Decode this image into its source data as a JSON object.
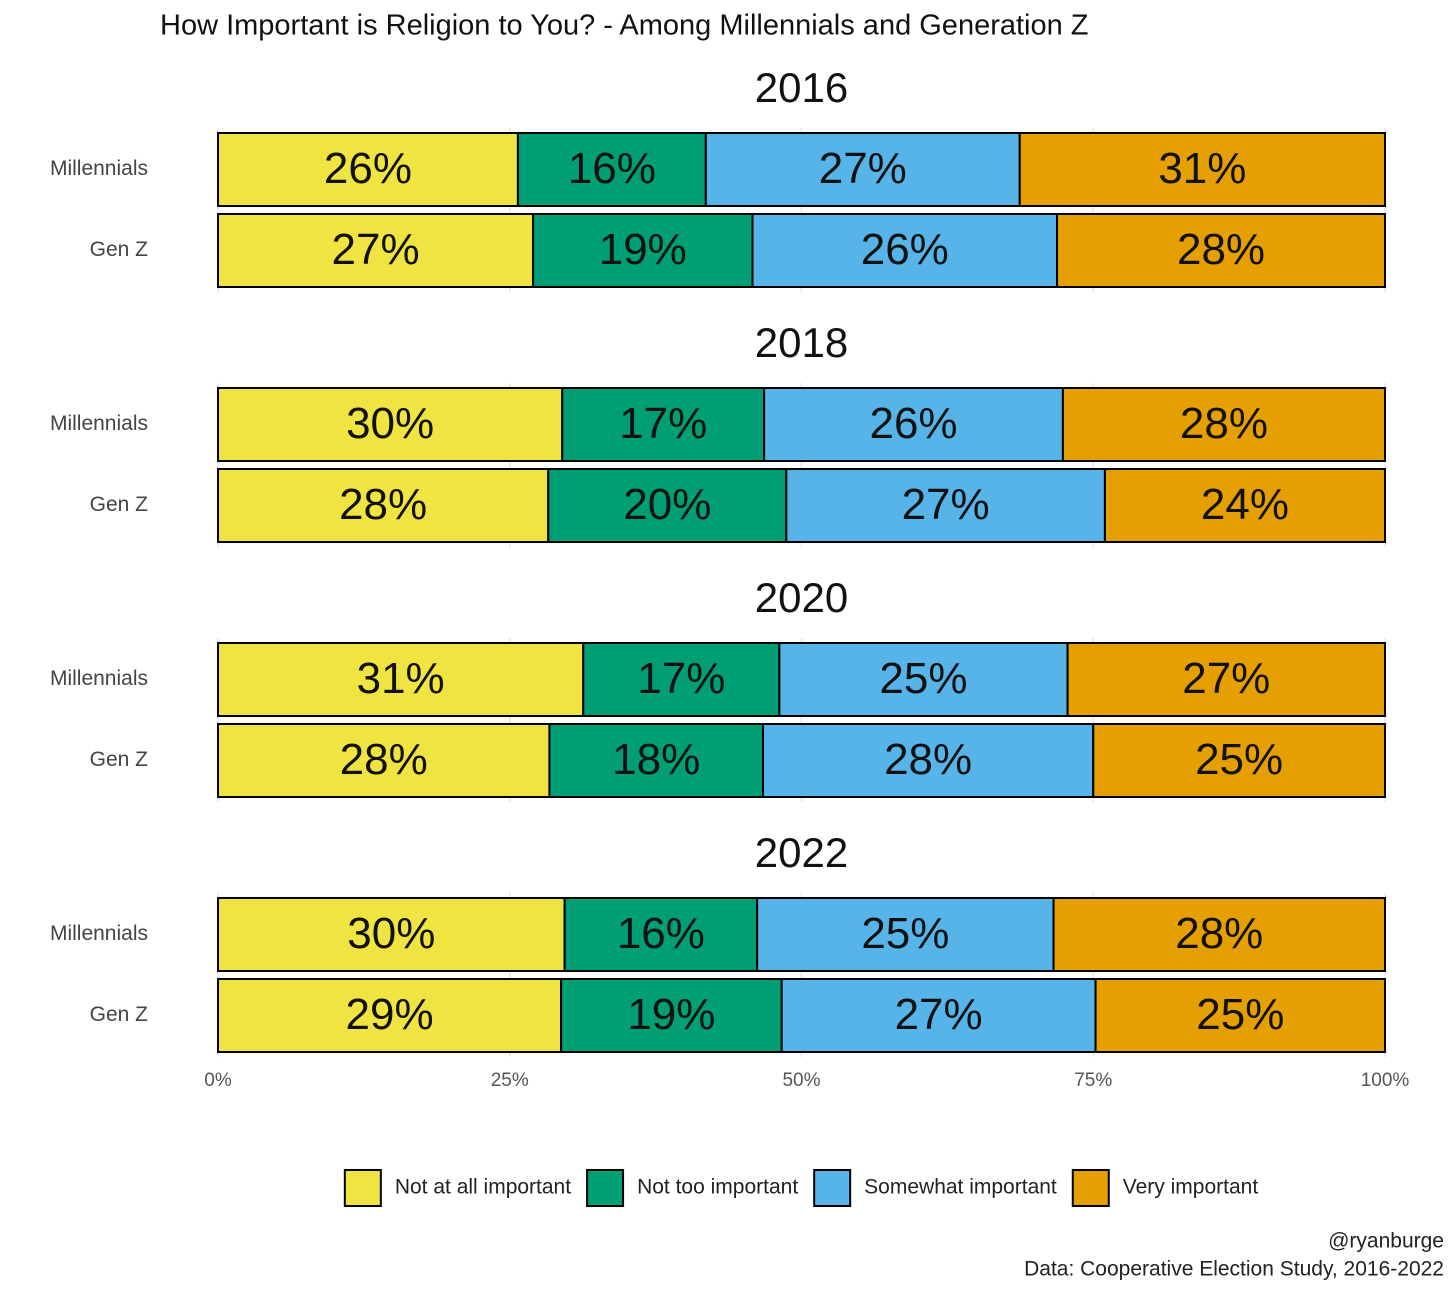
{
  "chart_data": {
    "type": "bar",
    "orientation": "horizontal",
    "stacked": true,
    "title": "How Important is Religion to You? - Among Millennials and Generation Z",
    "categories": [
      "Millennials",
      "Gen Z"
    ],
    "series": [
      {
        "name": "Not at all important",
        "color": "#f0e442"
      },
      {
        "name": "Not too important",
        "color": "#009e73"
      },
      {
        "name": "Somewhat important",
        "color": "#56b4e9"
      },
      {
        "name": "Very important",
        "color": "#e69f00"
      }
    ],
    "facets": [
      {
        "title": "2016",
        "values": [
          [
            25.7,
            16.1,
            26.9,
            31.3
          ],
          [
            27.0,
            18.8,
            26.1,
            28.1
          ]
        ],
        "value_labels": [
          [
            "26%",
            "16%",
            "27%",
            "31%"
          ],
          [
            "27%",
            "19%",
            "26%",
            "28%"
          ]
        ]
      },
      {
        "title": "2018",
        "values": [
          [
            29.5,
            17.3,
            25.6,
            27.6
          ],
          [
            28.3,
            20.4,
            27.3,
            24.0
          ]
        ],
        "value_labels": [
          [
            "30%",
            "17%",
            "26%",
            "28%"
          ],
          [
            "28%",
            "20%",
            "27%",
            "24%"
          ]
        ]
      },
      {
        "title": "2020",
        "values": [
          [
            31.3,
            16.8,
            24.7,
            27.2
          ],
          [
            28.4,
            18.3,
            28.3,
            25.0
          ]
        ],
        "value_labels": [
          [
            "31%",
            "17%",
            "25%",
            "27%"
          ],
          [
            "28%",
            "18%",
            "28%",
            "25%"
          ]
        ]
      },
      {
        "title": "2022",
        "values": [
          [
            29.7,
            16.5,
            25.4,
            28.4
          ],
          [
            29.4,
            18.9,
            26.9,
            24.8
          ]
        ],
        "value_labels": [
          [
            "30%",
            "16%",
            "25%",
            "28%"
          ],
          [
            "29%",
            "19%",
            "27%",
            "25%"
          ]
        ]
      }
    ],
    "xlim": [
      0,
      100
    ],
    "xticks": [
      {
        "value": 0,
        "label": "0%"
      },
      {
        "value": 25,
        "label": "25%"
      },
      {
        "value": 50,
        "label": "50%"
      },
      {
        "value": 75,
        "label": "75%"
      },
      {
        "value": 100,
        "label": "100%"
      }
    ],
    "grid": true,
    "legend": "bottom",
    "caption": [
      "@ryanburge",
      "Data: Cooperative Election Study, 2016-2022"
    ]
  }
}
